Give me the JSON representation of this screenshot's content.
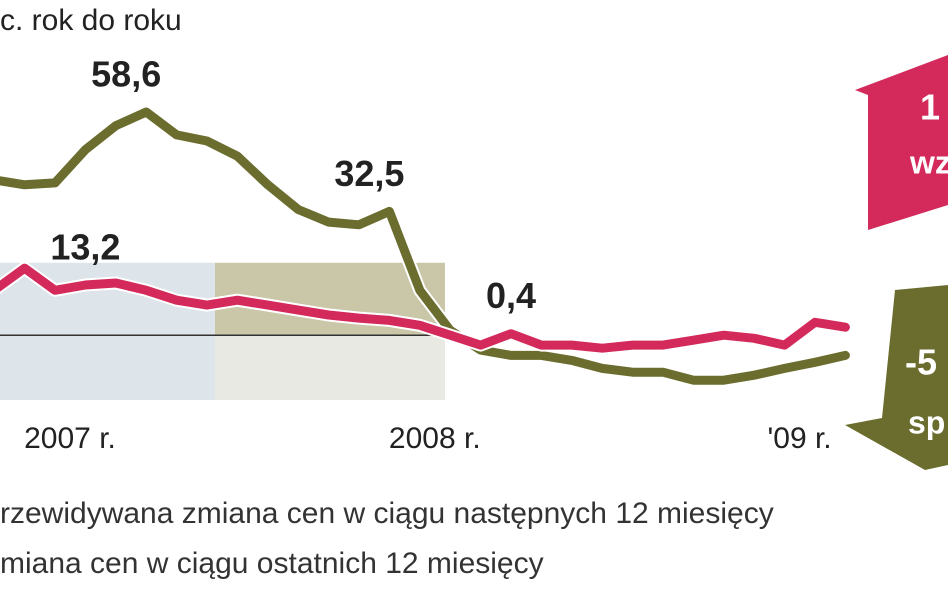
{
  "chart_data": {
    "type": "line",
    "title": "c. rok do roku",
    "ylim": [
      -17,
      88
    ],
    "categories": [
      null,
      null,
      "2007 r.",
      null,
      null,
      null,
      null,
      null,
      null,
      null,
      null,
      null,
      null,
      null,
      "2008 r.",
      null,
      null,
      null,
      null,
      null,
      null,
      null,
      null,
      null,
      null,
      null,
      "'09 r.",
      null,
      null
    ],
    "series": [
      {
        "name": "rzewidywana zmiana cen w ciągu następnych 12 miesięcy",
        "color": "#6b6d2e",
        "values": [
          40.8,
          39.5,
          40,
          48.7,
          55,
          58.6,
          52.6,
          51,
          47,
          39.5,
          33,
          29.7,
          29,
          32.5,
          11.8,
          1.3,
          -3.9,
          -5.3,
          -5.3,
          -6.6,
          -8.7,
          -9.7,
          -9.7,
          -11.8,
          -11.8,
          -10.5,
          -8.7,
          -7.1,
          -5.3
        ],
        "value_labels": [
          null,
          null,
          null,
          null,
          null,
          "58,6",
          null,
          null,
          null,
          null,
          null,
          null,
          null,
          "32,5",
          null,
          null,
          null,
          null,
          null,
          null,
          null,
          null,
          null,
          null,
          null,
          null,
          null,
          null,
          null
        ]
      },
      {
        "name": "miana cen w ciągu ostatnich 12 miesięcy",
        "color": "#d3295b",
        "values": [
          11.8,
          17.6,
          11.8,
          13.2,
          13.7,
          11.8,
          9.2,
          7.9,
          9.2,
          7.9,
          6.6,
          5.3,
          4.5,
          3.9,
          2.6,
          0,
          -2.6,
          0.4,
          -2.6,
          -2.6,
          -3.4,
          -2.6,
          -2.6,
          -1.3,
          0,
          -0.8,
          -2.6,
          3.4,
          2.1
        ],
        "value_labels": [
          null,
          null,
          null,
          "13,2",
          null,
          null,
          null,
          null,
          null,
          null,
          null,
          null,
          null,
          null,
          null,
          null,
          null,
          "0,4",
          null,
          null,
          null,
          null,
          null,
          null,
          null,
          null,
          null,
          null,
          null
        ]
      }
    ],
    "annotations": [
      "1",
      "wz",
      "-5",
      "sp"
    ]
  }
}
